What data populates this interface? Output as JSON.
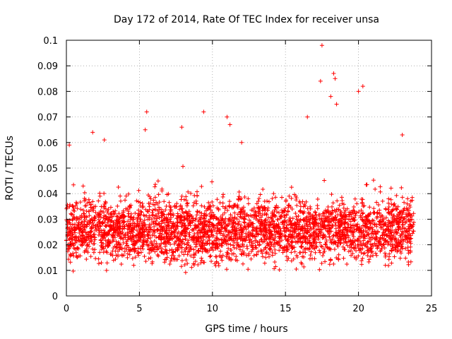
{
  "chart_data": {
    "type": "scatter",
    "title": "Day 172 of 2014, Rate Of TEC Index for receiver unsa",
    "xlabel": "GPS time / hours",
    "ylabel": "ROTI / TECUs",
    "xlim": [
      0,
      25
    ],
    "ylim": [
      0,
      0.1
    ],
    "xticks": [
      "0",
      "5",
      "10",
      "15",
      "20",
      "25"
    ],
    "yticks": [
      "0",
      "0.01",
      "0.02",
      "0.03",
      "0.04",
      "0.05",
      "0.06",
      "0.07",
      "0.08",
      "0.09",
      "0.1"
    ],
    "grid": true,
    "marker": "+",
    "series_color": "#ff0000",
    "notable_points": [
      {
        "x": 17.5,
        "y": 0.098
      },
      {
        "x": 18.3,
        "y": 0.087
      },
      {
        "x": 18.4,
        "y": 0.085
      },
      {
        "x": 17.4,
        "y": 0.084
      },
      {
        "x": 20.3,
        "y": 0.082
      },
      {
        "x": 18.1,
        "y": 0.078
      },
      {
        "x": 18.5,
        "y": 0.075
      },
      {
        "x": 20.0,
        "y": 0.08
      },
      {
        "x": 5.5,
        "y": 0.072
      },
      {
        "x": 9.4,
        "y": 0.072
      },
      {
        "x": 11.0,
        "y": 0.07
      },
      {
        "x": 16.5,
        "y": 0.07
      },
      {
        "x": 11.2,
        "y": 0.067
      },
      {
        "x": 7.9,
        "y": 0.066
      },
      {
        "x": 5.4,
        "y": 0.065
      },
      {
        "x": 1.8,
        "y": 0.064
      },
      {
        "x": 2.6,
        "y": 0.061
      },
      {
        "x": 12.0,
        "y": 0.06
      },
      {
        "x": 23.0,
        "y": 0.063
      },
      {
        "x": 0.2,
        "y": 0.059
      }
    ],
    "density_profile": {
      "x_range": [
        0,
        23.8
      ],
      "typical_range": [
        0.008,
        0.045
      ],
      "bulk_center": 0.022
    }
  }
}
